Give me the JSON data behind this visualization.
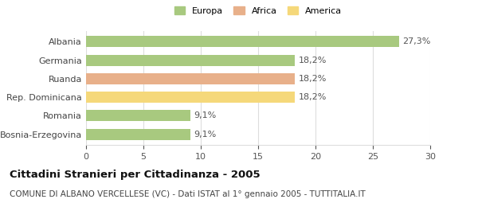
{
  "categories": [
    "Albania",
    "Germania",
    "Ruanda",
    "Rep. Dominicana",
    "Romania",
    "Bosnia-Erzegovina"
  ],
  "values": [
    27.3,
    18.2,
    18.2,
    18.2,
    9.1,
    9.1
  ],
  "bar_colors": [
    "#a8c97f",
    "#a8c97f",
    "#e8b08a",
    "#f5d87a",
    "#a8c97f",
    "#a8c97f"
  ],
  "bar_labels": [
    "27,3%",
    "18,2%",
    "18,2%",
    "18,2%",
    "9,1%",
    "9,1%"
  ],
  "legend_labels": [
    "Europa",
    "Africa",
    "America"
  ],
  "legend_colors": [
    "#a8c97f",
    "#e8b08a",
    "#f5d87a"
  ],
  "title": "Cittadini Stranieri per Cittadinanza - 2005",
  "subtitle": "COMUNE DI ALBANO VERCELLESE (VC) - Dati ISTAT al 1° gennaio 2005 - TUTTITALIA.IT",
  "xlim": [
    0,
    30
  ],
  "xticks": [
    0,
    5,
    10,
    15,
    20,
    25,
    30
  ],
  "background_color": "#ffffff",
  "grid_color": "#dddddd",
  "title_fontsize": 9.5,
  "subtitle_fontsize": 7.5,
  "label_fontsize": 8,
  "tick_fontsize": 8
}
